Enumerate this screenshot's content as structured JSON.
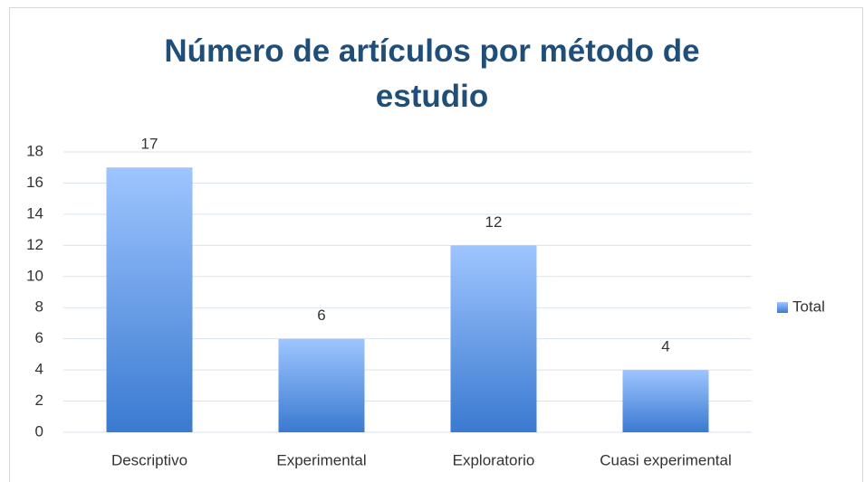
{
  "chart_data": {
    "type": "bar",
    "title": "Número de artículos por método de estudio",
    "categories": [
      "Descriptivo",
      "Experimental",
      "Exploratorio",
      "Cuasi experimental"
    ],
    "series": [
      {
        "name": "Total",
        "color": "#3a7ad0",
        "values": [
          17,
          6,
          12,
          4
        ]
      }
    ],
    "ylim": [
      0,
      18
    ],
    "yticks": [
      0,
      2,
      4,
      6,
      8,
      10,
      12,
      14,
      16,
      18
    ],
    "grid": true,
    "legend": "right"
  }
}
